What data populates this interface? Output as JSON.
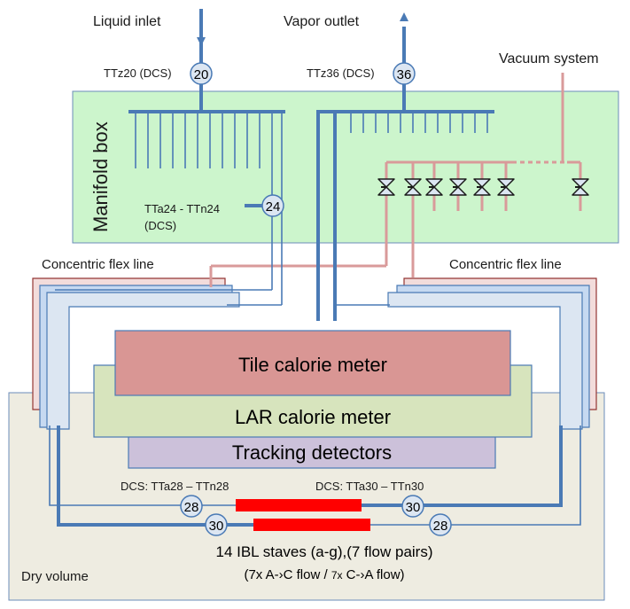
{
  "labels": {
    "liquid_inlet": "Liquid inlet",
    "vapor_outlet": "Vapor outlet",
    "vacuum_system": "Vacuum system",
    "ttz20": "TTz20 (DCS)",
    "ttz36": "TTz36 (DCS)",
    "manifold_box": "Manifold box",
    "tta24_line1": "TTa24 - TTn24",
    "tta24_line2": "(DCS)",
    "flex_left": "Concentric flex line",
    "flex_right": "Concentric flex line",
    "tile": "Tile calorie meter",
    "lar": "LAR calorie meter",
    "tracking": "Tracking detectors",
    "dcs28": "DCS: TTa28  – TTn28",
    "dcs30": "DCS: TTa30 – TTn30",
    "staves_line1": "14 IBL staves  (a-g),(7 flow pairs)",
    "staves_line2a": "(7x A-›C flow / ",
    "staves_line2b": "7x",
    "staves_line2c": " C-›A flow)",
    "dry_volume": "Dry volume"
  },
  "sensors": {
    "s20": "20",
    "s36": "36",
    "s24": "24",
    "s28a": "28",
    "s30a": "30",
    "s30b": "30",
    "s28b": "28"
  },
  "valve_count": 7,
  "colors": {
    "pipe_blue": "#4a7ab5",
    "vacuum_pink": "#d99a9a",
    "manifold_fill": "#ccf5cc",
    "dry_volume_fill": "#eeece1",
    "tile_fill": "#d99694",
    "lar_fill": "#d7e4bd",
    "tracking_fill": "#ccc1da",
    "stave_red": "#ff0000",
    "sensor_fill": "#dce6f2"
  }
}
